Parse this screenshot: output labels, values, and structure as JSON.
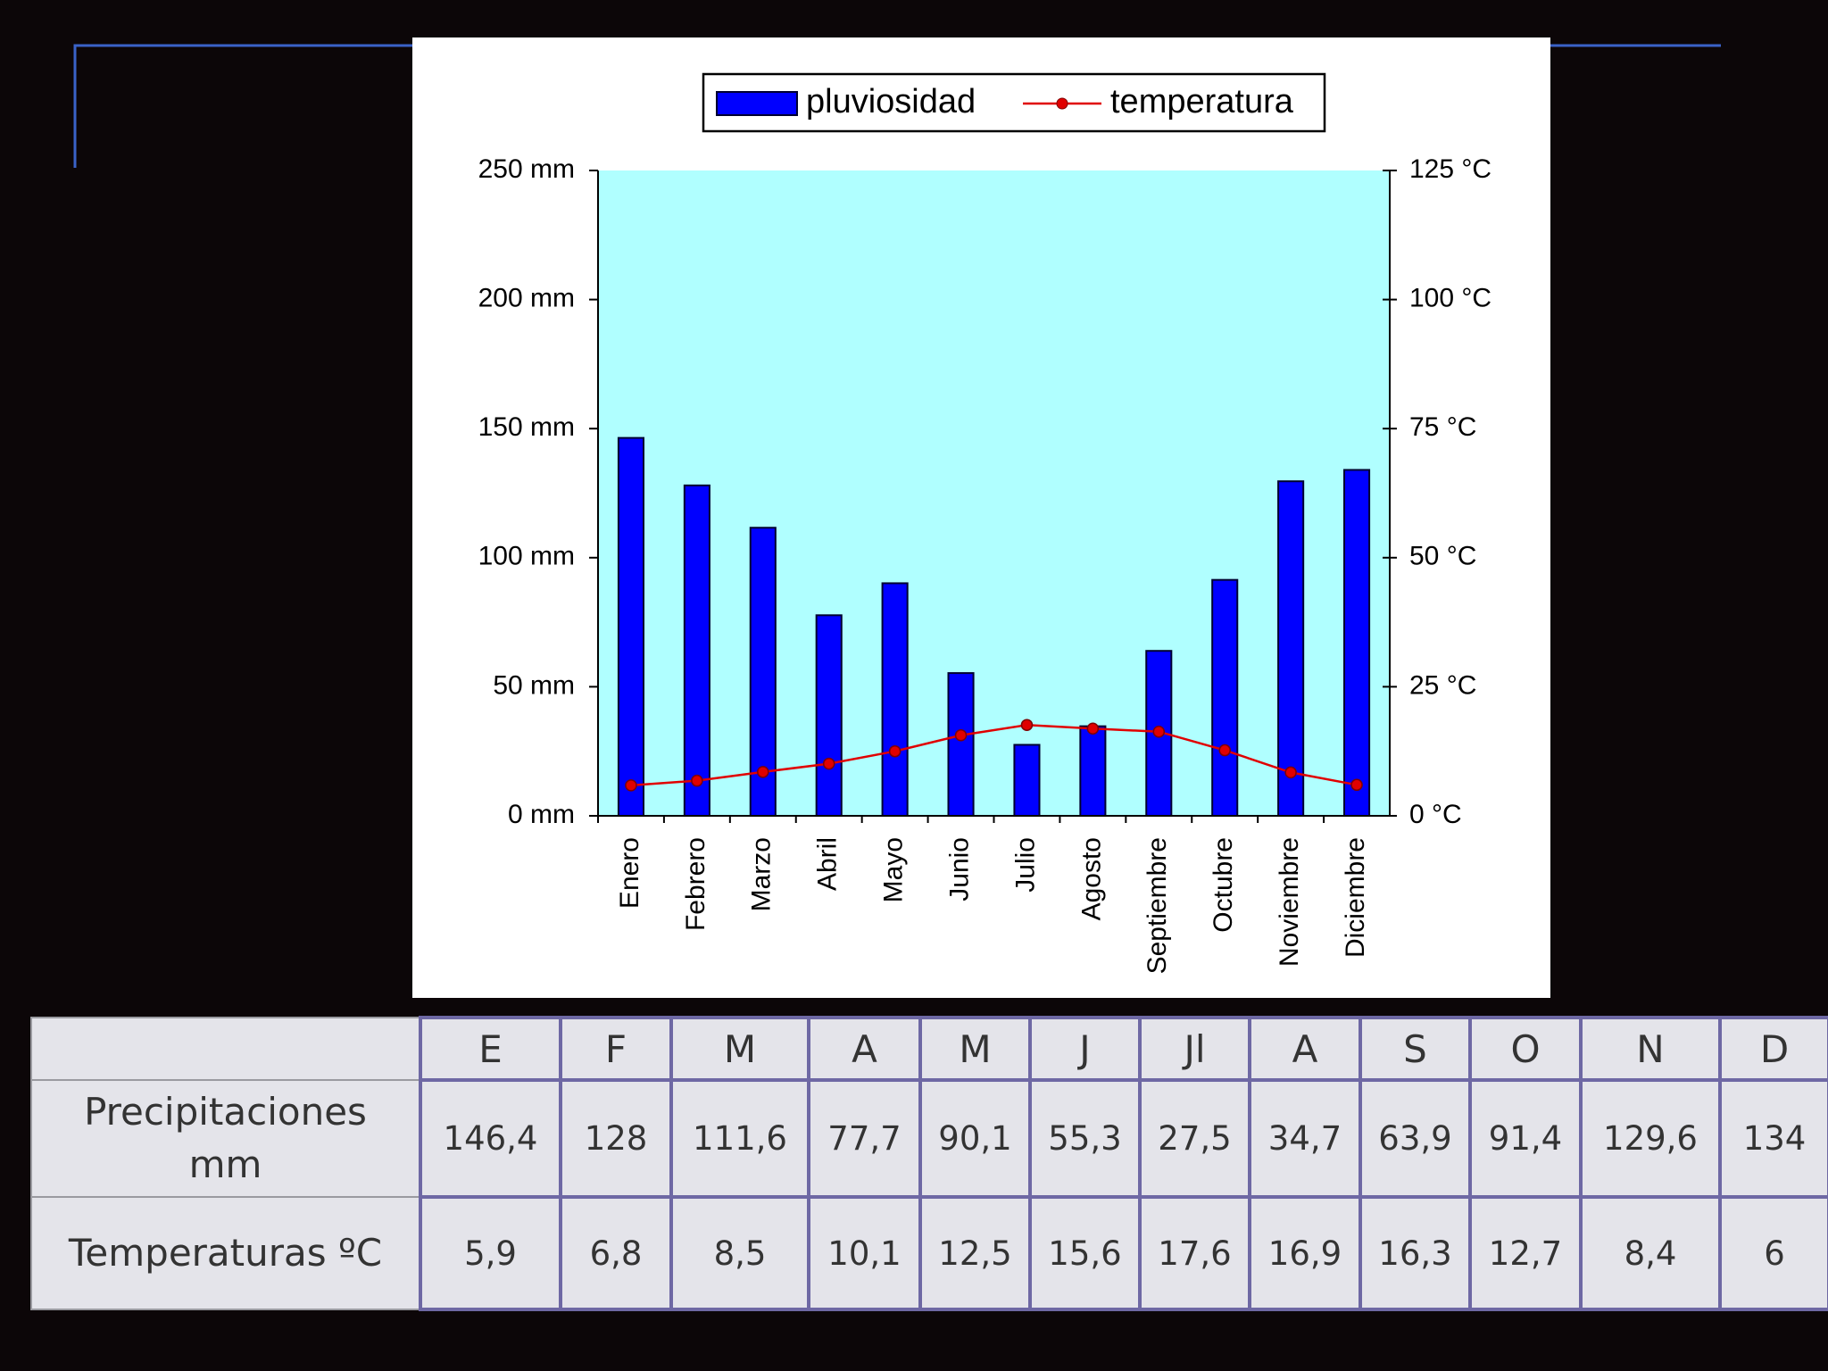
{
  "chart_data": {
    "type": "bar",
    "categories": [
      "Enero",
      "Febrero",
      "Marzo",
      "Abril",
      "Mayo",
      "Junio",
      "Julio",
      "Agosto",
      "Septiembre",
      "Octubre",
      "Noviembre",
      "Diciembre"
    ],
    "series": [
      {
        "name": "pluviosidad",
        "color": "#0000ff",
        "values": [
          146.4,
          128,
          111.6,
          77.7,
          90.1,
          55.3,
          27.5,
          34.7,
          63.9,
          91.4,
          129.6,
          134
        ]
      },
      {
        "name": "temperatura",
        "type": "line",
        "axis": "y2",
        "color": "#e00000",
        "values": [
          5.9,
          6.8,
          8.5,
          10.1,
          12.5,
          15.6,
          17.6,
          16.9,
          16.3,
          12.7,
          8.4,
          6
        ]
      }
    ],
    "ylim": [
      0,
      250
    ],
    "yticks": [
      {
        "value": 0,
        "label": "0 mm"
      },
      {
        "value": 50,
        "label": "50 mm"
      },
      {
        "value": 100,
        "label": "100 mm"
      },
      {
        "value": 150,
        "label": "150 mm"
      },
      {
        "value": 200,
        "label": "200 mm"
      },
      {
        "value": 250,
        "label": "250 mm"
      }
    ],
    "y2lim": [
      0,
      125
    ],
    "y2ticks": [
      {
        "value": 0,
        "label": "0 °C"
      },
      {
        "value": 25,
        "label": "25 °C"
      },
      {
        "value": 50,
        "label": "50 °C"
      },
      {
        "value": 75,
        "label": "75 °C"
      },
      {
        "value": 100,
        "label": "100 °C"
      },
      {
        "value": 125,
        "label": "125 °C"
      }
    ],
    "plot_background": "#b0ffff",
    "legend": "top"
  },
  "table": {
    "header": [
      "E",
      "F",
      "M",
      "A",
      "M",
      "J",
      "Jl",
      "A",
      "S",
      "O",
      "N",
      "D"
    ],
    "rows": [
      {
        "label": "Precipitaciones mm",
        "cells": [
          "146,4",
          "128",
          "111,6",
          "77,7",
          "90,1",
          "55,3",
          "27,5",
          "34,7",
          "63,9",
          "91,4",
          "129,6",
          "134"
        ]
      },
      {
        "label": "Temperaturas ºC",
        "cells": [
          "5,9",
          "6,8",
          "8,5",
          "10,1",
          "12,5",
          "15,6",
          "17,6",
          "16,9",
          "16,3",
          "12,7",
          "8,4",
          "6"
        ]
      }
    ]
  }
}
